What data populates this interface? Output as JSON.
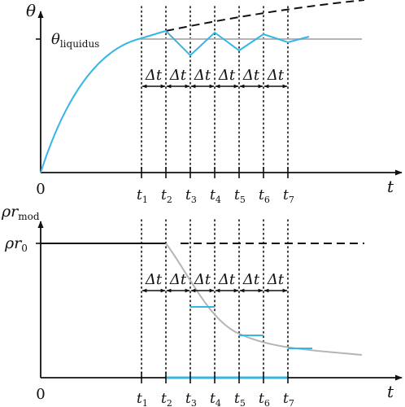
{
  "top_panel": {
    "y_axis_label": "θ",
    "liquidus_label_main": "θ",
    "liquidus_label_sub": "liquidus",
    "origin_label": "0",
    "x_axis_label": "t",
    "delta_label": "Δt",
    "ticks": [
      {
        "main": "t",
        "sub": "1"
      },
      {
        "main": "t",
        "sub": "2"
      },
      {
        "main": "t",
        "sub": "3"
      },
      {
        "main": "t",
        "sub": "4"
      },
      {
        "main": "t",
        "sub": "5"
      },
      {
        "main": "t",
        "sub": "6"
      },
      {
        "main": "t",
        "sub": "7"
      }
    ]
  },
  "bottom_panel": {
    "y_axis_label_main": "ρr",
    "y_axis_label_sub": "mod",
    "level_label_main": "ρr",
    "level_label_sub": "0",
    "origin_label": "0",
    "x_axis_label": "t",
    "delta_label": "Δt",
    "ticks": [
      {
        "main": "t",
        "sub": "1"
      },
      {
        "main": "t",
        "sub": "2"
      },
      {
        "main": "t",
        "sub": "3"
      },
      {
        "main": "t",
        "sub": "4"
      },
      {
        "main": "t",
        "sub": "5"
      },
      {
        "main": "t",
        "sub": "6"
      },
      {
        "main": "t",
        "sub": "7"
      }
    ]
  },
  "colors": {
    "accent": "#35b6e6",
    "reference": "#b5b5b5",
    "ink": "#111111"
  }
}
